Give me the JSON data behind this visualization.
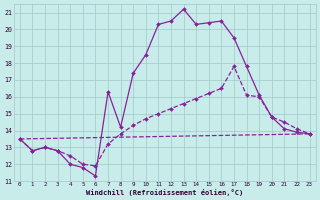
{
  "bg_color": "#c8ecea",
  "grid_color": "#a0c8c8",
  "line_color": "#882299",
  "xlim": [
    -0.5,
    23.5
  ],
  "ylim": [
    11,
    21.5
  ],
  "yticks": [
    11,
    12,
    13,
    14,
    15,
    16,
    17,
    18,
    19,
    20,
    21
  ],
  "xticks": [
    0,
    1,
    2,
    3,
    4,
    5,
    6,
    7,
    8,
    9,
    10,
    11,
    12,
    13,
    14,
    15,
    16,
    17,
    18,
    19,
    20,
    21,
    22,
    23
  ],
  "xlabel": "Windchill (Refroidissement éolien,°C)",
  "curve1_x": [
    0,
    1,
    2,
    3,
    4,
    5,
    6,
    7,
    8,
    9,
    10,
    11,
    12,
    13,
    14,
    15,
    16,
    17,
    18,
    19,
    20,
    21,
    22,
    23
  ],
  "curve1_y": [
    13.5,
    12.8,
    13.0,
    12.8,
    12.0,
    11.8,
    11.3,
    16.3,
    14.2,
    17.4,
    18.5,
    20.3,
    20.5,
    21.2,
    20.3,
    20.4,
    20.5,
    19.5,
    17.8,
    16.1,
    14.8,
    14.1,
    13.9,
    13.8
  ],
  "curve2_x": [
    0,
    1,
    2,
    3,
    4,
    5,
    6,
    7,
    8,
    9,
    10,
    11,
    12,
    13,
    14,
    15,
    16,
    17,
    18,
    19,
    20,
    21,
    22,
    23
  ],
  "curve2_y": [
    13.5,
    12.8,
    13.0,
    12.8,
    12.5,
    12.0,
    11.9,
    13.2,
    13.8,
    14.3,
    14.7,
    15.0,
    15.3,
    15.6,
    15.9,
    16.2,
    16.5,
    17.8,
    16.1,
    16.0,
    14.8,
    14.5,
    14.1,
    13.8
  ],
  "line3_x": [
    0,
    23
  ],
  "line3_y": [
    13.5,
    13.8
  ]
}
